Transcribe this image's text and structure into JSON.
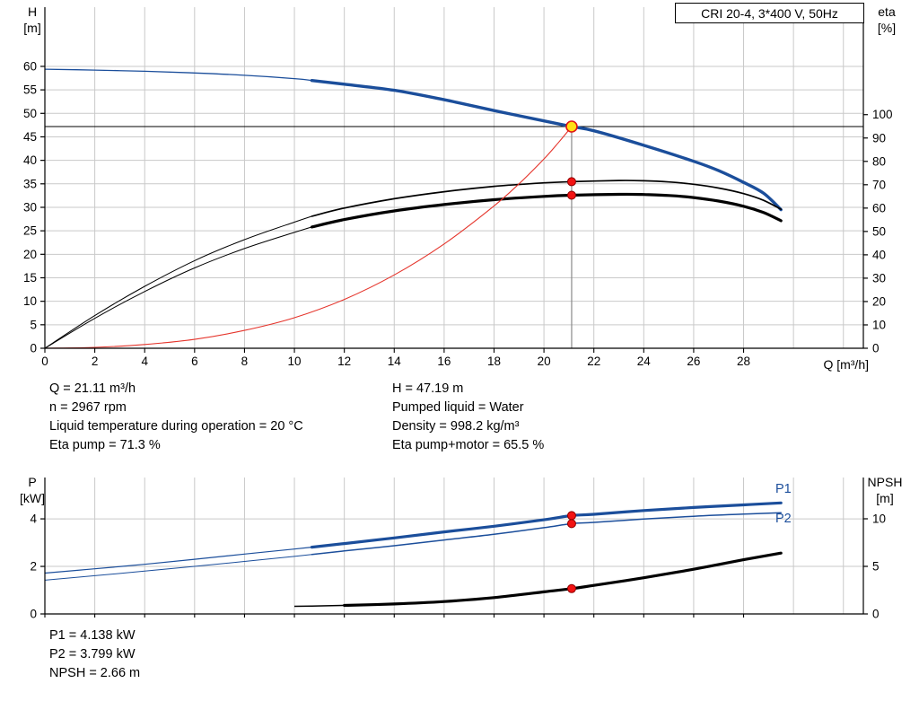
{
  "colors": {
    "blue": "#1b4e9b",
    "black": "#000000",
    "red": "#e5342b",
    "dot_fill": "#f21313",
    "dot_stroke": "#8e0000",
    "duty_fill": "#ffe014",
    "duty_stroke": "#e01414",
    "grid": "#c9c9c9",
    "axis": "#000000",
    "vline": "#8a8a8a"
  },
  "title_box": "CRI 20-4, 3*400 V, 50Hz",
  "operating_point": {
    "left": [
      "Q = 21.11 m³/h",
      "n = 2967 rpm",
      "Liquid temperature during operation = 20 °C",
      "Eta pump = 71.3 %"
    ],
    "right": [
      "H = 47.19 m",
      "Pumped liquid = Water",
      "Density = 998.2 kg/m³",
      "Eta pump+motor = 65.5 %"
    ]
  },
  "power_readout": [
    "P1 = 4.138 kW",
    "P2 = 3.799 kW",
    "NPSH = 2.66 m"
  ],
  "chart_data": [
    {
      "id": "hq",
      "type": "line",
      "title": "CRI 20-4, 3*400 V, 50Hz",
      "x": {
        "label": "Q [m³/h]",
        "min": 0,
        "max": 32.8,
        "ticks": [
          0,
          2,
          4,
          6,
          8,
          10,
          12,
          14,
          16,
          18,
          20,
          22,
          24,
          26,
          28
        ],
        "tick_labels": true
      },
      "y_left": {
        "label": "H",
        "unit": "[m]",
        "min": 0,
        "max": 72.6,
        "ticks": [
          0,
          5,
          10,
          15,
          20,
          25,
          30,
          35,
          40,
          45,
          50,
          55,
          60
        ]
      },
      "y_right": {
        "label": "eta",
        "unit": "[%]",
        "min": 0,
        "max": 146,
        "ticks": [
          0,
          10,
          20,
          30,
          40,
          50,
          60,
          70,
          80,
          90,
          100
        ]
      },
      "series": [
        {
          "name": "head-curve",
          "axis": "left",
          "color": "#1b4e9b",
          "split": 10.7,
          "w1": 1.3,
          "w2": 3.4,
          "points": [
            [
              0,
              59.4
            ],
            [
              2,
              59.2
            ],
            [
              4,
              58.95
            ],
            [
              6,
              58.6
            ],
            [
              8,
              58.1
            ],
            [
              10,
              57.4
            ],
            [
              10.7,
              57.0
            ],
            [
              12,
              56.2
            ],
            [
              14,
              54.9
            ],
            [
              16,
              52.9
            ],
            [
              18,
              50.6
            ],
            [
              20,
              48.4
            ],
            [
              21.11,
              47.19
            ],
            [
              22,
              46.3
            ],
            [
              24,
              43.2
            ],
            [
              26,
              39.8
            ],
            [
              27,
              37.8
            ],
            [
              28,
              35.3
            ],
            [
              28.8,
              33.0
            ],
            [
              29.5,
              29.5
            ]
          ]
        },
        {
          "name": "eta-pump-curve",
          "axis": "right",
          "color": "#000000",
          "split": 10.7,
          "w1": 1,
          "w2": 1.7,
          "points": [
            [
              0,
              0
            ],
            [
              2,
              14
            ],
            [
              4,
              26.5
            ],
            [
              6,
              37.5
            ],
            [
              8,
              46.5
            ],
            [
              10,
              54
            ],
            [
              10.7,
              56.5
            ],
            [
              12,
              60
            ],
            [
              14,
              64
            ],
            [
              16,
              67
            ],
            [
              18,
              69.3
            ],
            [
              20,
              70.8
            ],
            [
              21.11,
              71.3
            ],
            [
              23,
              71.8
            ],
            [
              24,
              71.7
            ],
            [
              25,
              71.2
            ],
            [
              26,
              70.2
            ],
            [
              27,
              68.6
            ],
            [
              28,
              66.2
            ],
            [
              28.8,
              63.3
            ],
            [
              29.5,
              59.5
            ]
          ]
        },
        {
          "name": "eta-pump-motor-curve",
          "axis": "right",
          "color": "#000000",
          "split": 10.7,
          "w1": 1,
          "w2": 3.2,
          "points": [
            [
              0,
              0
            ],
            [
              2,
              12.8
            ],
            [
              4,
              24.3
            ],
            [
              6,
              34.4
            ],
            [
              8,
              42.7
            ],
            [
              10,
              49.6
            ],
            [
              10.7,
              51.9
            ],
            [
              12,
              55.1
            ],
            [
              14,
              58.8
            ],
            [
              16,
              61.5
            ],
            [
              18,
              63.6
            ],
            [
              20,
              65.0
            ],
            [
              21.11,
              65.5
            ],
            [
              23,
              65.9
            ],
            [
              24,
              65.8
            ],
            [
              25,
              65.4
            ],
            [
              26,
              64.5
            ],
            [
              27,
              63.0
            ],
            [
              28,
              60.8
            ],
            [
              28.8,
              58.1
            ],
            [
              29.5,
              54.6
            ]
          ]
        },
        {
          "name": "system-curve",
          "axis": "left",
          "color": "#e5342b",
          "w1": 1.1,
          "points": [
            [
              0,
              0
            ],
            [
              2,
              0.2
            ],
            [
              4,
              0.8
            ],
            [
              6,
              1.9
            ],
            [
              8,
              3.8
            ],
            [
              10,
              6.5
            ],
            [
              12,
              10.4
            ],
            [
              14,
              15.6
            ],
            [
              16,
              22.2
            ],
            [
              18,
              30.3
            ],
            [
              19,
              35.0
            ],
            [
              20,
              40.3
            ],
            [
              20.6,
              43.9
            ],
            [
              21.11,
              47.19
            ]
          ]
        }
      ],
      "ref_lines": [
        {
          "type": "h",
          "axis": "left",
          "value": 47.19,
          "color": "#000000",
          "w": 1
        },
        {
          "type": "v",
          "value": 21.11,
          "from": 47.19,
          "from_axis": "left",
          "color": "#8a8a8a",
          "w": 1.2
        }
      ],
      "markers": [
        {
          "name": "duty-point",
          "style": "duty",
          "x": 21.11,
          "axis": "left",
          "y": 47.19
        },
        {
          "name": "eta-pump-point",
          "style": "dot",
          "x": 21.11,
          "axis": "right",
          "y": 71.3
        },
        {
          "name": "eta-pump-motor-point",
          "style": "dot",
          "x": 21.11,
          "axis": "right",
          "y": 65.5
        }
      ]
    },
    {
      "id": "pq",
      "type": "line",
      "title": "",
      "x": {
        "label": "",
        "min": 0,
        "max": 32.8,
        "ticks": [
          0,
          2,
          4,
          6,
          8,
          10,
          12,
          14,
          16,
          18,
          20,
          22,
          24,
          26,
          28
        ],
        "tick_labels": false
      },
      "y_left": {
        "label": "P",
        "unit": "[kW]",
        "min": 0,
        "max": 5.74,
        "ticks": [
          0,
          2,
          4
        ]
      },
      "y_right": {
        "label": "NPSH",
        "unit": "[m]",
        "min": 0,
        "max": 14.34,
        "ticks": [
          0,
          5,
          10
        ]
      },
      "series": [
        {
          "name": "p1-curve",
          "axis": "left",
          "color": "#1b4e9b",
          "split": 10.7,
          "w1": 1.2,
          "w2": 3.2,
          "label": "P1",
          "points": [
            [
              0,
              1.72
            ],
            [
              2,
              1.9
            ],
            [
              4,
              2.09
            ],
            [
              6,
              2.3
            ],
            [
              8,
              2.52
            ],
            [
              10,
              2.73
            ],
            [
              10.7,
              2.81
            ],
            [
              12,
              2.96
            ],
            [
              14,
              3.2
            ],
            [
              16,
              3.45
            ],
            [
              18,
              3.69
            ],
            [
              20,
              3.96
            ],
            [
              21.11,
              4.138
            ],
            [
              22,
              4.19
            ],
            [
              24,
              4.35
            ],
            [
              26,
              4.48
            ],
            [
              28,
              4.59
            ],
            [
              29.5,
              4.67
            ]
          ]
        },
        {
          "name": "p2-curve",
          "axis": "left",
          "color": "#1b4e9b",
          "split": 10.7,
          "w1": 1,
          "w2": 1.5,
          "label": "P2",
          "points": [
            [
              0,
              1.42
            ],
            [
              2,
              1.61
            ],
            [
              4,
              1.8
            ],
            [
              6,
              2.0
            ],
            [
              8,
              2.21
            ],
            [
              10,
              2.42
            ],
            [
              10.7,
              2.5
            ],
            [
              12,
              2.65
            ],
            [
              14,
              2.87
            ],
            [
              16,
              3.11
            ],
            [
              18,
              3.35
            ],
            [
              20,
              3.63
            ],
            [
              21.11,
              3.799
            ],
            [
              22,
              3.85
            ],
            [
              24,
              3.99
            ],
            [
              26,
              4.11
            ],
            [
              28,
              4.2
            ],
            [
              29.5,
              4.26
            ]
          ]
        },
        {
          "name": "npsh-curve",
          "axis": "right",
          "color": "#000000",
          "split": 12,
          "w1": 1.5,
          "w2": 3.2,
          "points": [
            [
              10,
              0.8
            ],
            [
              10.7,
              0.82
            ],
            [
              12,
              0.9
            ],
            [
              14,
              1.05
            ],
            [
              16,
              1.3
            ],
            [
              18,
              1.72
            ],
            [
              20,
              2.32
            ],
            [
              21.11,
              2.66
            ],
            [
              22,
              3.0
            ],
            [
              24,
              3.8
            ],
            [
              26,
              4.7
            ],
            [
              28,
              5.7
            ],
            [
              29.5,
              6.4
            ]
          ]
        }
      ],
      "ref_lines": [],
      "markers": [
        {
          "name": "p1-point",
          "style": "dot",
          "x": 21.11,
          "axis": "left",
          "y": 4.138
        },
        {
          "name": "p2-point",
          "style": "dot",
          "x": 21.11,
          "axis": "left",
          "y": 3.799
        },
        {
          "name": "npsh-point",
          "style": "dot",
          "x": 21.11,
          "axis": "right",
          "y": 2.66
        }
      ]
    }
  ]
}
